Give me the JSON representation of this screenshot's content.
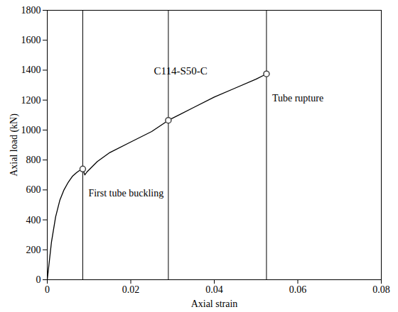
{
  "chart_data": {
    "type": "line",
    "title": "C114-S50-C",
    "x_label": "Axial strain",
    "y_label": "Axial load (kN)",
    "x": [
      0,
      0.001,
      0.002,
      0.003,
      0.004,
      0.005,
      0.006,
      0.007,
      0.008,
      0.0085,
      0.009,
      0.0095,
      0.012,
      0.015,
      0.02,
      0.025,
      0.029,
      0.035,
      0.04,
      0.045,
      0.05,
      0.0525
    ],
    "values": [
      0,
      250,
      420,
      530,
      600,
      650,
      690,
      715,
      735,
      740,
      700,
      720,
      790,
      850,
      920,
      990,
      1065,
      1150,
      1220,
      1280,
      1340,
      1375
    ],
    "color": "#000000",
    "markers": {
      "x": [
        0.0085,
        0.029,
        0.0525
      ],
      "y": [
        740,
        1065,
        1375
      ],
      "labels": [
        "First tube buckling",
        null,
        "Tube rupture"
      ]
    },
    "xlim": [
      0,
      0.08
    ],
    "ylim": [
      0,
      1800
    ],
    "xticks": [
      0,
      0.02,
      0.04,
      0.06,
      0.08
    ],
    "yticks": [
      0,
      200,
      400,
      600,
      800,
      1000,
      1200,
      1400,
      1600,
      1800
    ]
  }
}
